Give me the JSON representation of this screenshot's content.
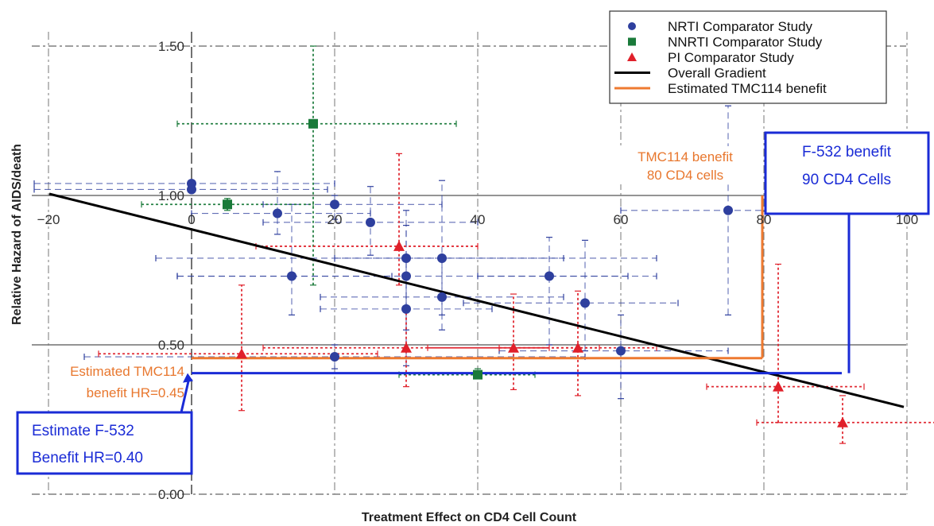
{
  "chart_data": {
    "type": "scatter",
    "xlabel": "Treatment Effect on CD4 Cell Count",
    "ylabel": "Relative Hazard of AIDS/death",
    "xlim": [
      -20,
      100
    ],
    "ylim": [
      0.0,
      1.5
    ],
    "x_ticks": [
      "−20",
      "0",
      "20",
      "40",
      "60",
      "80",
      "100"
    ],
    "x_tick_values": [
      -20,
      0,
      20,
      40,
      60,
      80,
      100
    ],
    "y_ticks": [
      "0.00",
      "0.50",
      "1.00",
      "1.50"
    ],
    "y_tick_values": [
      0.0,
      0.5,
      1.0,
      1.5
    ],
    "legend_position": "top-right",
    "legend": [
      {
        "label": "NRTI Comparator Study",
        "marker": "circle",
        "color": "#2e3f9e"
      },
      {
        "label": "NNRTI Comparator Study",
        "marker": "square",
        "color": "#1a7a3a"
      },
      {
        "label": "PI Comparator Study",
        "marker": "triangle",
        "color": "#e0202a"
      },
      {
        "label": "Overall Gradient",
        "marker": "line",
        "color": "#000000"
      },
      {
        "label": "Estimated TMC114 benefit",
        "marker": "line",
        "color": "#ee7a30"
      }
    ],
    "series": [
      {
        "name": "NRTI Comparator Study",
        "color": "#2e3f9e",
        "points": [
          {
            "x": 0,
            "y": 1.04,
            "xlo": -22,
            "xhi": 20,
            "ylo": 1.04,
            "yhi": 1.04
          },
          {
            "x": 0,
            "y": 1.02,
            "xlo": -22,
            "xhi": 19,
            "ylo": 1.02,
            "yhi": 1.02
          },
          {
            "x": 20,
            "y": 0.97,
            "xlo": 10,
            "xhi": 35,
            "ylo": 0.92,
            "yhi": 1.0
          },
          {
            "x": 12,
            "y": 0.94,
            "xlo": 0,
            "xhi": 25,
            "ylo": 0.87,
            "yhi": 1.08
          },
          {
            "x": 25,
            "y": 0.91,
            "xlo": 10,
            "xhi": 40,
            "ylo": 0.8,
            "yhi": 1.03
          },
          {
            "x": 30,
            "y": 0.79,
            "xlo": -5,
            "xhi": 65,
            "ylo": 0.62,
            "yhi": 0.95
          },
          {
            "x": 35,
            "y": 0.79,
            "xlo": 20,
            "xhi": 52,
            "ylo": 0.6,
            "yhi": 1.05
          },
          {
            "x": 14,
            "y": 0.73,
            "xlo": -2,
            "xhi": 28,
            "ylo": 0.6,
            "yhi": 0.97
          },
          {
            "x": 30,
            "y": 0.73,
            "xlo": -2,
            "xhi": 65,
            "ylo": 0.55,
            "yhi": 0.9
          },
          {
            "x": 50,
            "y": 0.73,
            "xlo": 40,
            "xhi": 61,
            "ylo": 0.5,
            "yhi": 0.86
          },
          {
            "x": 35,
            "y": 0.66,
            "xlo": 18,
            "xhi": 52,
            "ylo": 0.55,
            "yhi": 0.8
          },
          {
            "x": 55,
            "y": 0.64,
            "xlo": 38,
            "xhi": 68,
            "ylo": 0.48,
            "yhi": 0.85
          },
          {
            "x": 30,
            "y": 0.62,
            "xlo": 18,
            "xhi": 42,
            "ylo": 0.43,
            "yhi": 0.78
          },
          {
            "x": 20,
            "y": 0.46,
            "xlo": -15,
            "xhi": 55,
            "ylo": 0.42,
            "yhi": 0.5
          },
          {
            "x": 60,
            "y": 0.48,
            "xlo": 43,
            "xhi": 75,
            "ylo": 0.32,
            "yhi": 0.6
          },
          {
            "x": 75,
            "y": 0.95,
            "xlo": 60,
            "xhi": 88,
            "ylo": 0.6,
            "yhi": 1.3
          }
        ]
      },
      {
        "name": "NNRTI Comparator Study",
        "color": "#1a7a3a",
        "points": [
          {
            "x": 17,
            "y": 1.24,
            "xlo": -2,
            "xhi": 37,
            "ylo": 0.7,
            "yhi": 1.5
          },
          {
            "x": 5,
            "y": 0.97,
            "xlo": -7,
            "xhi": 17,
            "ylo": 0.95,
            "yhi": 0.99
          },
          {
            "x": 40,
            "y": 0.4,
            "xlo": 29,
            "xhi": 48,
            "ylo": 0.39,
            "yhi": 0.42
          }
        ]
      },
      {
        "name": "PI Comparator Study",
        "color": "#e0202a",
        "points": [
          {
            "x": 29,
            "y": 0.83,
            "xlo": 9,
            "xhi": 40,
            "ylo": 0.7,
            "yhi": 1.14
          },
          {
            "x": 7,
            "y": 0.47,
            "xlo": -13,
            "xhi": 26,
            "ylo": 0.28,
            "yhi": 0.7
          },
          {
            "x": 30,
            "y": 0.49,
            "xlo": 10,
            "xhi": 50,
            "ylo": 0.36,
            "yhi": 0.63
          },
          {
            "x": 45,
            "y": 0.49,
            "xlo": 33,
            "xhi": 57,
            "ylo": 0.35,
            "yhi": 0.67
          },
          {
            "x": 54,
            "y": 0.49,
            "xlo": 43,
            "xhi": 65,
            "ylo": 0.33,
            "yhi": 0.68
          },
          {
            "x": 82,
            "y": 0.36,
            "xlo": 72,
            "xhi": 94,
            "ylo": 0.24,
            "yhi": 0.77
          },
          {
            "x": 91,
            "y": 0.24,
            "xlo": 79,
            "xhi": 104,
            "ylo": 0.17,
            "yhi": 0.33
          }
        ]
      }
    ],
    "gradient_line": {
      "x": [
        -20,
        100
      ],
      "y": [
        1.0,
        0.34
      ]
    },
    "tmc114_benefit": {
      "x": 80,
      "hr": 0.45
    },
    "f532_benefit": {
      "x": 91,
      "hr": 0.4
    }
  },
  "annotations": {
    "tmc114_line1": "TMC114 benefit",
    "tmc114_line2": "80  CD4 cells",
    "f532_line1": "F-532 benefit",
    "f532_line2": "90 CD4 Cells",
    "hr_tmc_line1": "Estimated TMC114",
    "hr_tmc_line2": "benefit HR=0.45",
    "hr_f532_line1": "Estimate F-532",
    "hr_f532_line2": "Benefit HR=0.40"
  }
}
